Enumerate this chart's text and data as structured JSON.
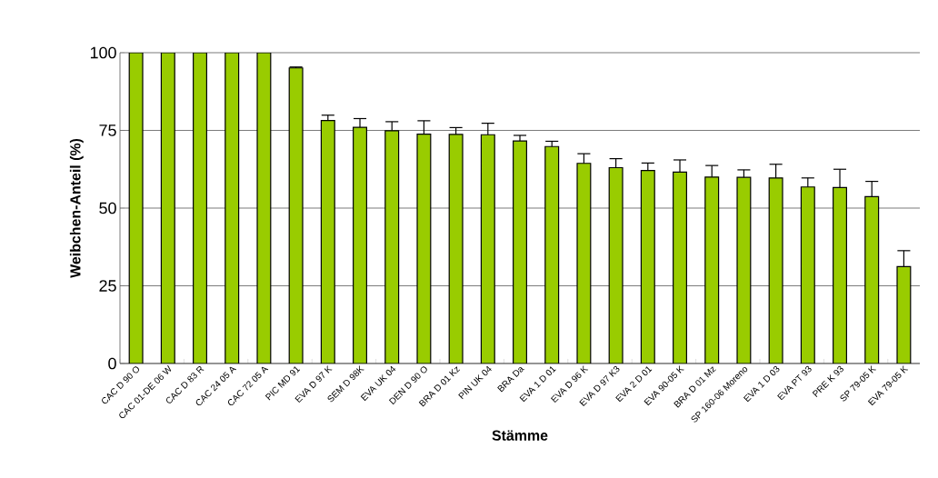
{
  "chart_data": {
    "type": "bar",
    "xlabel": "Stämme",
    "ylabel": "Weibchen-Anteil (%)",
    "categories": [
      "CAC D 90 O",
      "CAC 01-DE 06 W",
      "CAC D 83 R",
      "CAC 24 05 A",
      "CAC 72 05 A",
      "PIC MD 91",
      "EVA D 97 K",
      "SEM D 98K",
      "EVA UK 04",
      "DEN D 90 O",
      "BRA D 01 Kz",
      "PIN UK 04",
      "BRA Da",
      "EVA 1 D 01",
      "EVA D 96 K",
      "EVA D 97 K3",
      "EVA 2 D 01",
      "EVA 90-05 K",
      "BRA D 01 Mz",
      "SP 160-06 Moreno",
      "EVA 1 D 03",
      "EVA PT 93",
      "PRE K 93",
      "SP 79-05 K",
      "EVA 79-05 K"
    ],
    "values": [
      100,
      100,
      100,
      100,
      100,
      95.1,
      78.2,
      76.0,
      74.9,
      73.8,
      73.7,
      73.6,
      71.6,
      69.8,
      64.4,
      63.0,
      62.1,
      61.6,
      60.0,
      59.9,
      59.7,
      56.8,
      56.6,
      53.7,
      31.2
    ],
    "errors": [
      null,
      null,
      null,
      null,
      null,
      [
        95.1,
        95.4
      ],
      [
        78.2,
        79.9
      ],
      [
        76.0,
        78.8
      ],
      [
        74.9,
        77.8
      ],
      [
        73.8,
        78.1
      ],
      [
        73.7,
        75.9
      ],
      [
        73.6,
        77.3
      ],
      [
        71.6,
        73.4
      ],
      [
        69.8,
        71.5
      ],
      [
        64.4,
        67.5
      ],
      [
        63.0,
        65.9
      ],
      [
        62.1,
        64.5
      ],
      [
        61.6,
        65.5
      ],
      [
        60.0,
        63.7
      ],
      [
        59.9,
        62.3
      ],
      [
        59.7,
        64.1
      ],
      [
        56.8,
        59.7
      ],
      [
        56.6,
        62.5
      ],
      [
        53.7,
        58.6
      ],
      [
        31.2,
        36.3
      ]
    ],
    "color": "#99cc00",
    "ylim": [
      0,
      100
    ],
    "yticks": [
      0,
      25,
      50,
      75,
      100
    ],
    "grid": "y"
  }
}
